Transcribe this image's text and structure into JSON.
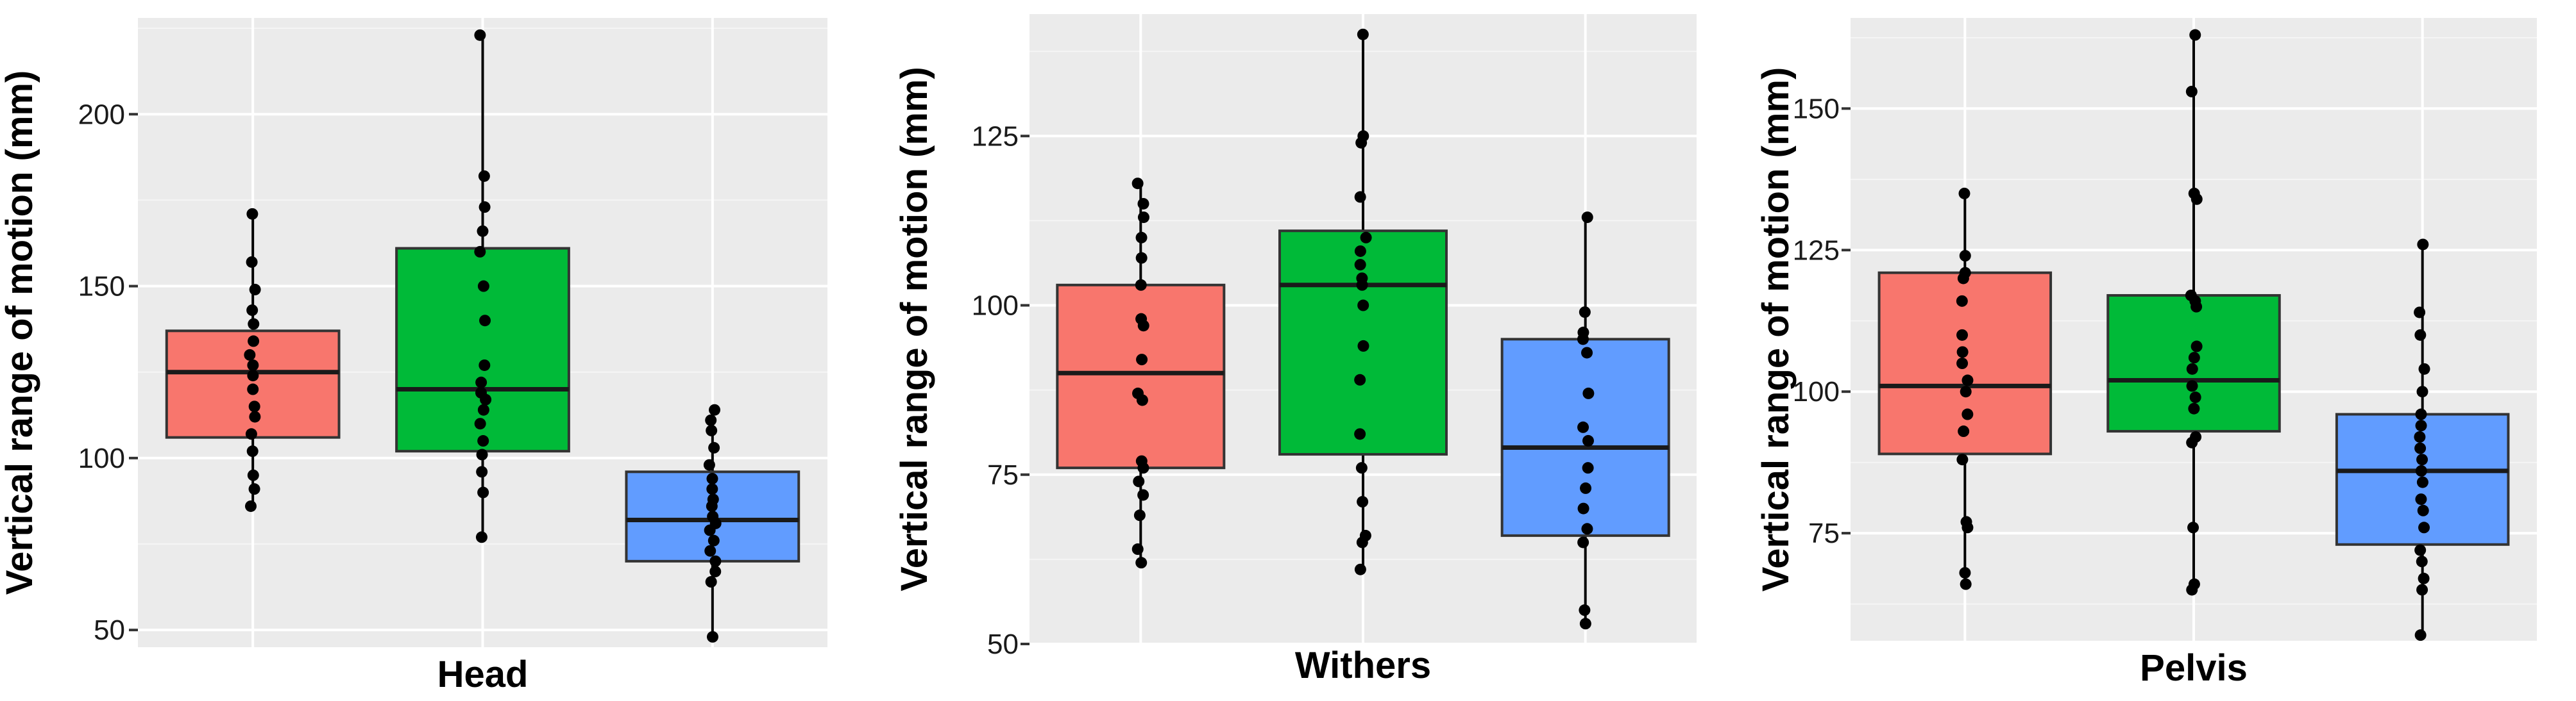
{
  "chart_data": [
    {
      "type": "box",
      "xlabel": "Head",
      "ylabel": "Vertical range of motion (mm)",
      "ylim": [
        45,
        228
      ],
      "yticks": [
        50,
        100,
        150,
        200
      ],
      "colors": [
        "#f8766d",
        "#00ba38",
        "#619cff"
      ],
      "boxes": [
        {
          "q1": 106,
          "median": 125,
          "q3": 137,
          "whisker_low": 86,
          "whisker_high": 171,
          "points": [
            86,
            91,
            95,
            102,
            107,
            112,
            115,
            120,
            124,
            127,
            130,
            134,
            139,
            143,
            149,
            157,
            171
          ]
        },
        {
          "q1": 102,
          "median": 120,
          "q3": 161,
          "whisker_low": 77,
          "whisker_high": 223,
          "points": [
            77,
            90,
            96,
            101,
            105,
            110,
            114,
            117,
            119,
            122,
            127,
            140,
            150,
            160,
            166,
            173,
            182,
            223
          ]
        },
        {
          "q1": 70,
          "median": 82,
          "q3": 96,
          "whisker_low": 48,
          "whisker_high": 114,
          "points": [
            48,
            64,
            67,
            70,
            73,
            76,
            79,
            81,
            83,
            86,
            88,
            91,
            94,
            98,
            103,
            108,
            111,
            114
          ]
        }
      ]
    },
    {
      "type": "box",
      "xlabel": "Withers",
      "ylabel": "Vertical range of motion (mm)",
      "ylim": [
        50,
        143
      ],
      "yticks": [
        50,
        75,
        100,
        125
      ],
      "colors": [
        "#f8766d",
        "#00ba38",
        "#619cff"
      ],
      "boxes": [
        {
          "q1": 76,
          "median": 90,
          "q3": 103,
          "whisker_low": 62,
          "whisker_high": 118,
          "points": [
            62,
            64,
            69,
            72,
            74,
            76,
            77,
            86,
            87,
            92,
            97,
            98,
            103,
            107,
            110,
            113,
            115,
            118
          ]
        },
        {
          "q1": 78,
          "median": 103,
          "q3": 111,
          "whisker_low": 61,
          "whisker_high": 140,
          "points": [
            61,
            65,
            66,
            71,
            76,
            81,
            89,
            94,
            100,
            103,
            104,
            106,
            108,
            110,
            116,
            124,
            125,
            140
          ]
        },
        {
          "q1": 66,
          "median": 79,
          "q3": 95,
          "whisker_low": 53,
          "whisker_high": 113,
          "points": [
            53,
            55,
            65,
            67,
            70,
            73,
            76,
            80,
            82,
            87,
            93,
            95,
            96,
            99,
            113
          ]
        }
      ]
    },
    {
      "type": "box",
      "xlabel": "Pelvis",
      "ylabel": "Vertical range of motion (mm)",
      "ylim": [
        56,
        166
      ],
      "yticks": [
        75,
        100,
        125,
        150
      ],
      "colors": [
        "#f8766d",
        "#00ba38",
        "#619cff"
      ],
      "boxes": [
        {
          "q1": 89,
          "median": 101,
          "q3": 121,
          "whisker_low": 66,
          "whisker_high": 135,
          "points": [
            66,
            68,
            76,
            77,
            88,
            93,
            96,
            100,
            102,
            105,
            107,
            110,
            116,
            120,
            121,
            124,
            135
          ]
        },
        {
          "q1": 93,
          "median": 102,
          "q3": 117,
          "whisker_low": 65,
          "whisker_high": 163,
          "points": [
            65,
            66,
            76,
            91,
            92,
            97,
            99,
            101,
            104,
            106,
            108,
            115,
            116,
            117,
            134,
            135,
            153,
            163
          ]
        },
        {
          "q1": 73,
          "median": 86,
          "q3": 96,
          "whisker_low": 57,
          "whisker_high": 126,
          "points": [
            57,
            65,
            67,
            70,
            72,
            76,
            79,
            81,
            84,
            86,
            88,
            90,
            92,
            94,
            96,
            100,
            104,
            110,
            114,
            126
          ]
        }
      ]
    }
  ]
}
